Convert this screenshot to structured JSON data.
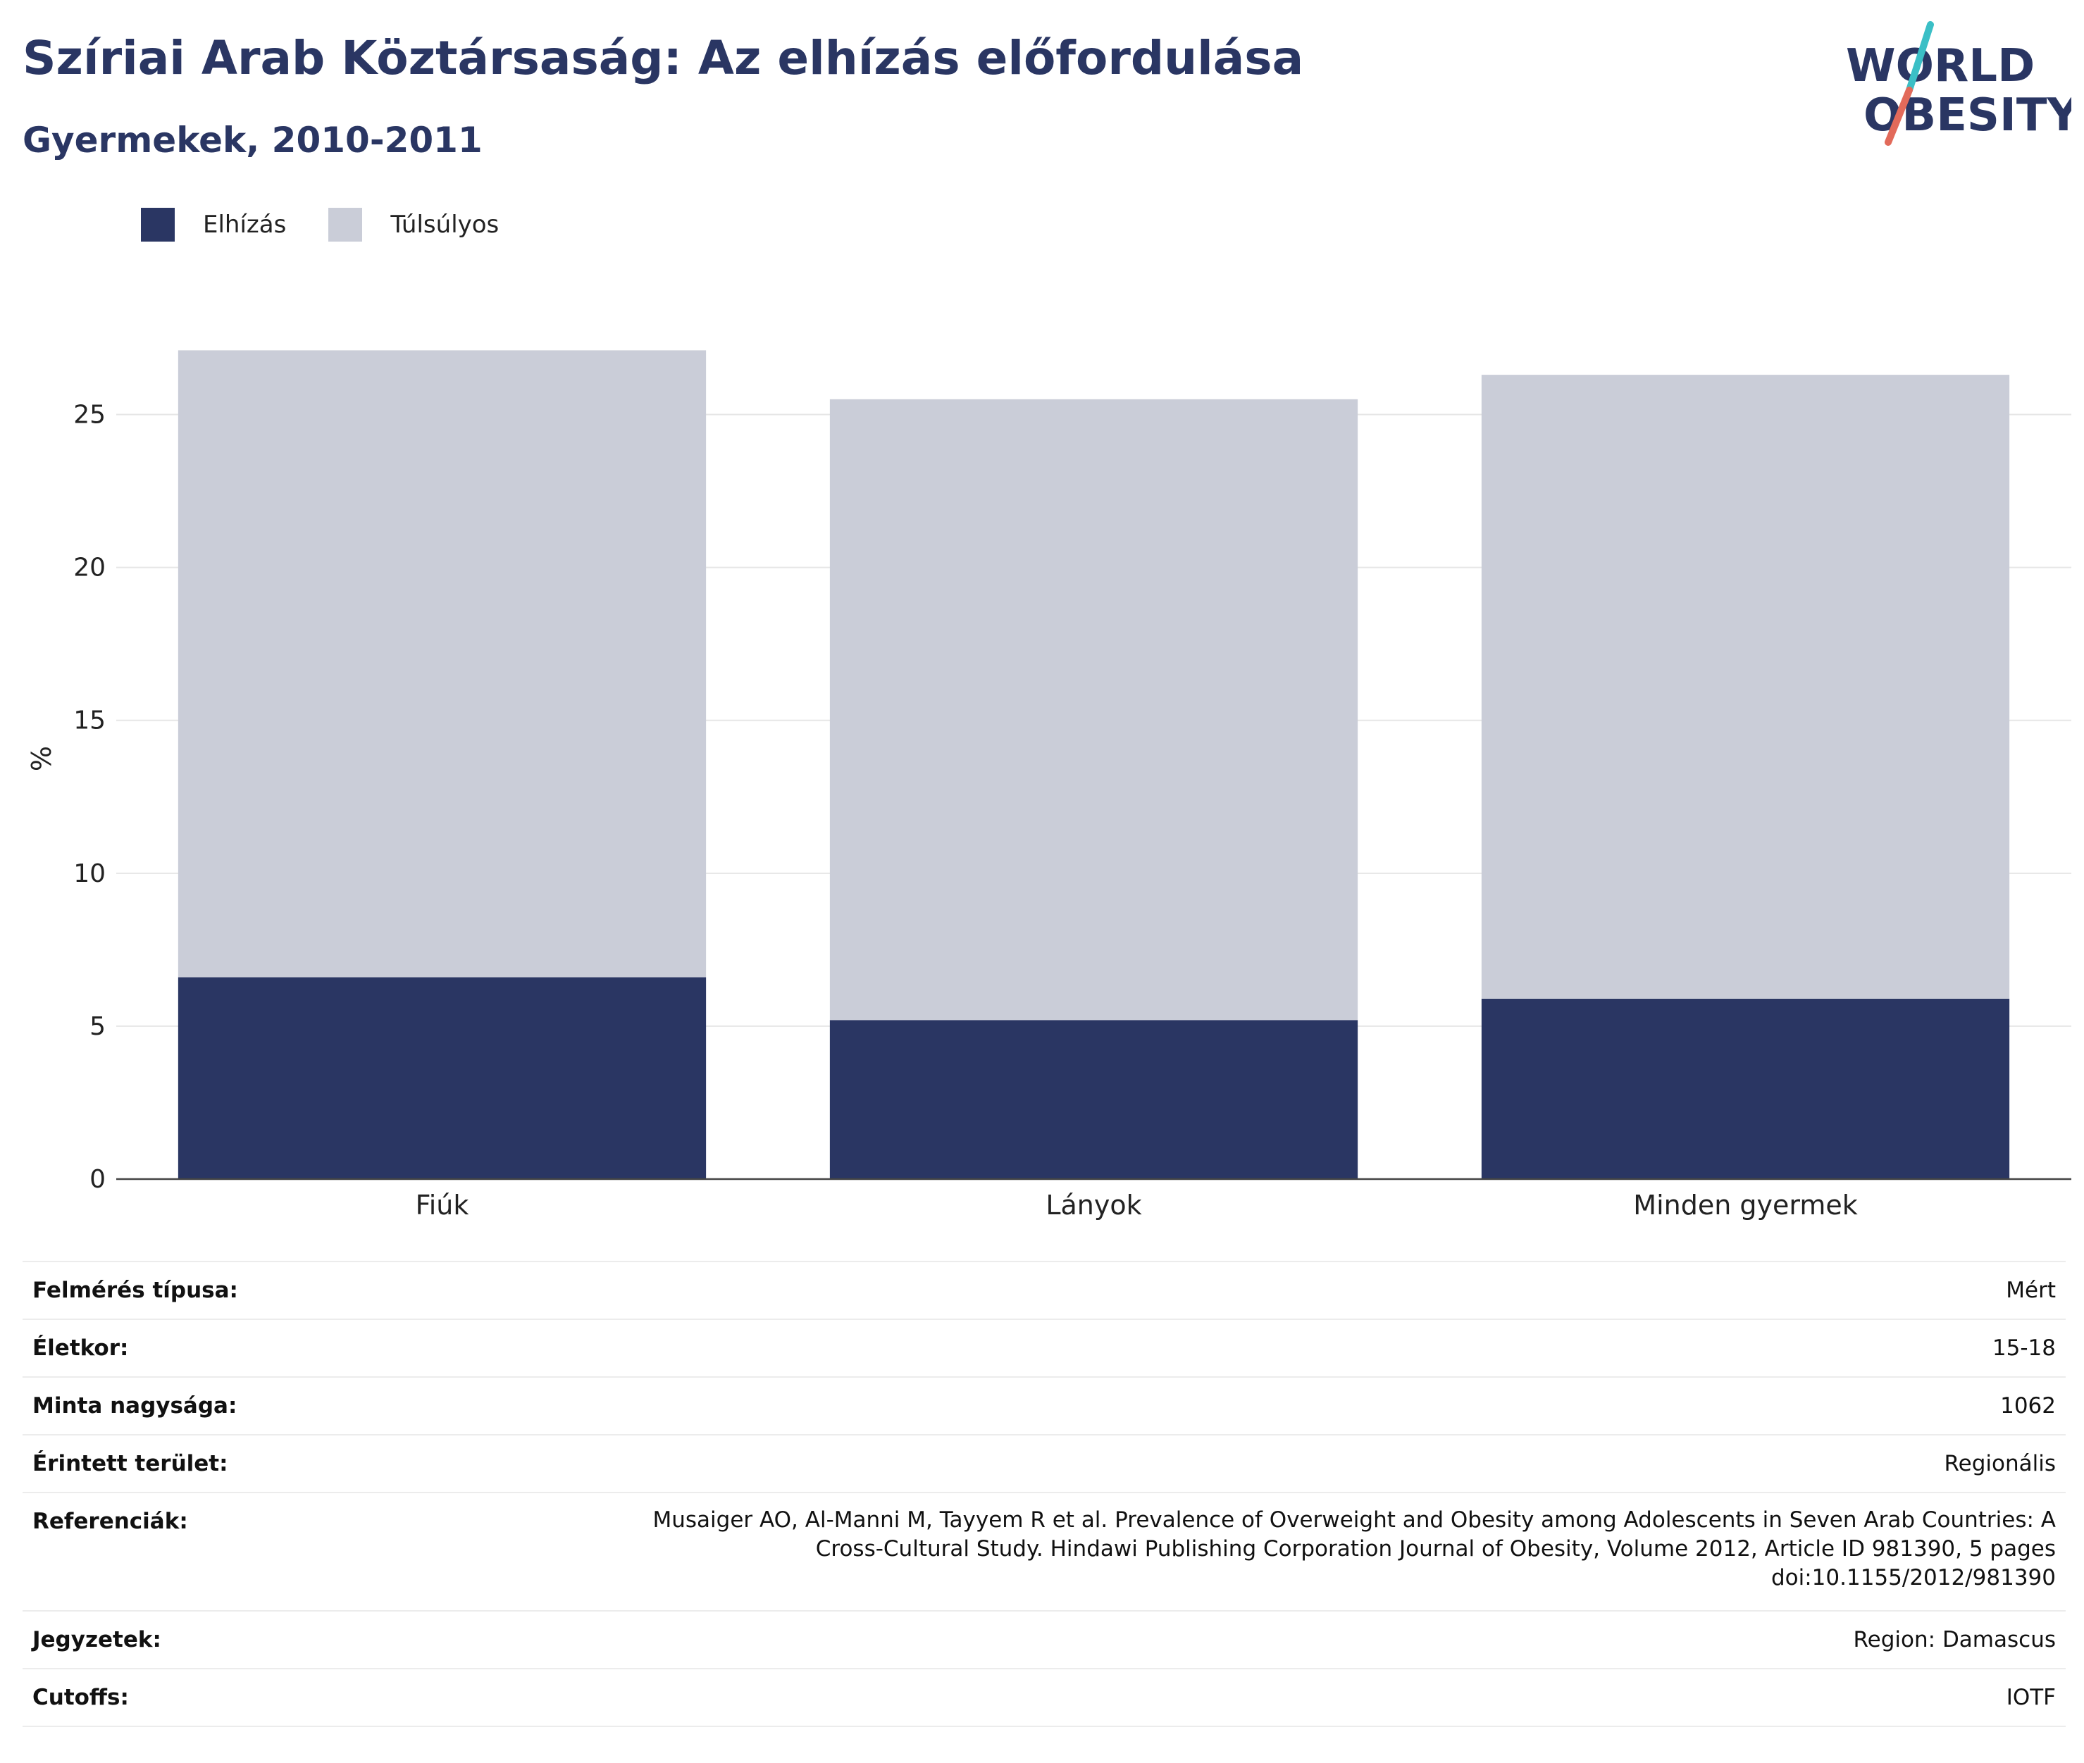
{
  "header": {
    "title": "Szíriai Arab Köztársaság: Az elhízás előfordulása",
    "subtitle": "Gyermekek, 2010-2011"
  },
  "logo": {
    "line1": "WORLD",
    "line2": "OBESITY"
  },
  "colors": {
    "obesity": "#2a3663",
    "overweight": "#cacdd8",
    "text": "#2a3663",
    "accent_teal": "#3bbfc6",
    "accent_coral": "#e26a5a"
  },
  "chart_data": {
    "type": "bar",
    "stacked": true,
    "categories": [
      "Fiúk",
      "Lányok",
      "Minden gyermek"
    ],
    "series": [
      {
        "name": "Elhízás",
        "color": "#2a3663",
        "values": [
          6.6,
          5.2,
          5.9
        ]
      },
      {
        "name": "Túlsúlyos",
        "color": "#cacdd8",
        "values": [
          20.5,
          20.3,
          20.4
        ]
      }
    ],
    "ylabel": "%",
    "ylim": [
      0,
      27.5
    ],
    "yticks": [
      0,
      5,
      10,
      15,
      20,
      25
    ],
    "grid": true,
    "legend": "top-left"
  },
  "meta": [
    {
      "key": "Felmérés típusa:",
      "value": [
        "Mért"
      ]
    },
    {
      "key": "Életkor:",
      "value": [
        "15-18"
      ]
    },
    {
      "key": "Minta nagysága:",
      "value": [
        "1062"
      ]
    },
    {
      "key": "Érintett terület:",
      "value": [
        "Regionális"
      ]
    },
    {
      "key": "Referenciák:",
      "value": [
        "Musaiger AO, Al-Manni M, Tayyem R et al. Prevalence of Overweight and Obesity among Adolescents in Seven Arab Countries: A",
        "Cross-Cultural Study. Hindawi Publishing Corporation Journal of Obesity, Volume 2012, Article ID 981390, 5 pages",
        "doi:10.1155/2012/981390"
      ]
    },
    {
      "key": "Jegyzetek:",
      "value": [
        "Region: Damascus"
      ]
    },
    {
      "key": "Cutoffs:",
      "value": [
        "IOTF"
      ]
    }
  ]
}
